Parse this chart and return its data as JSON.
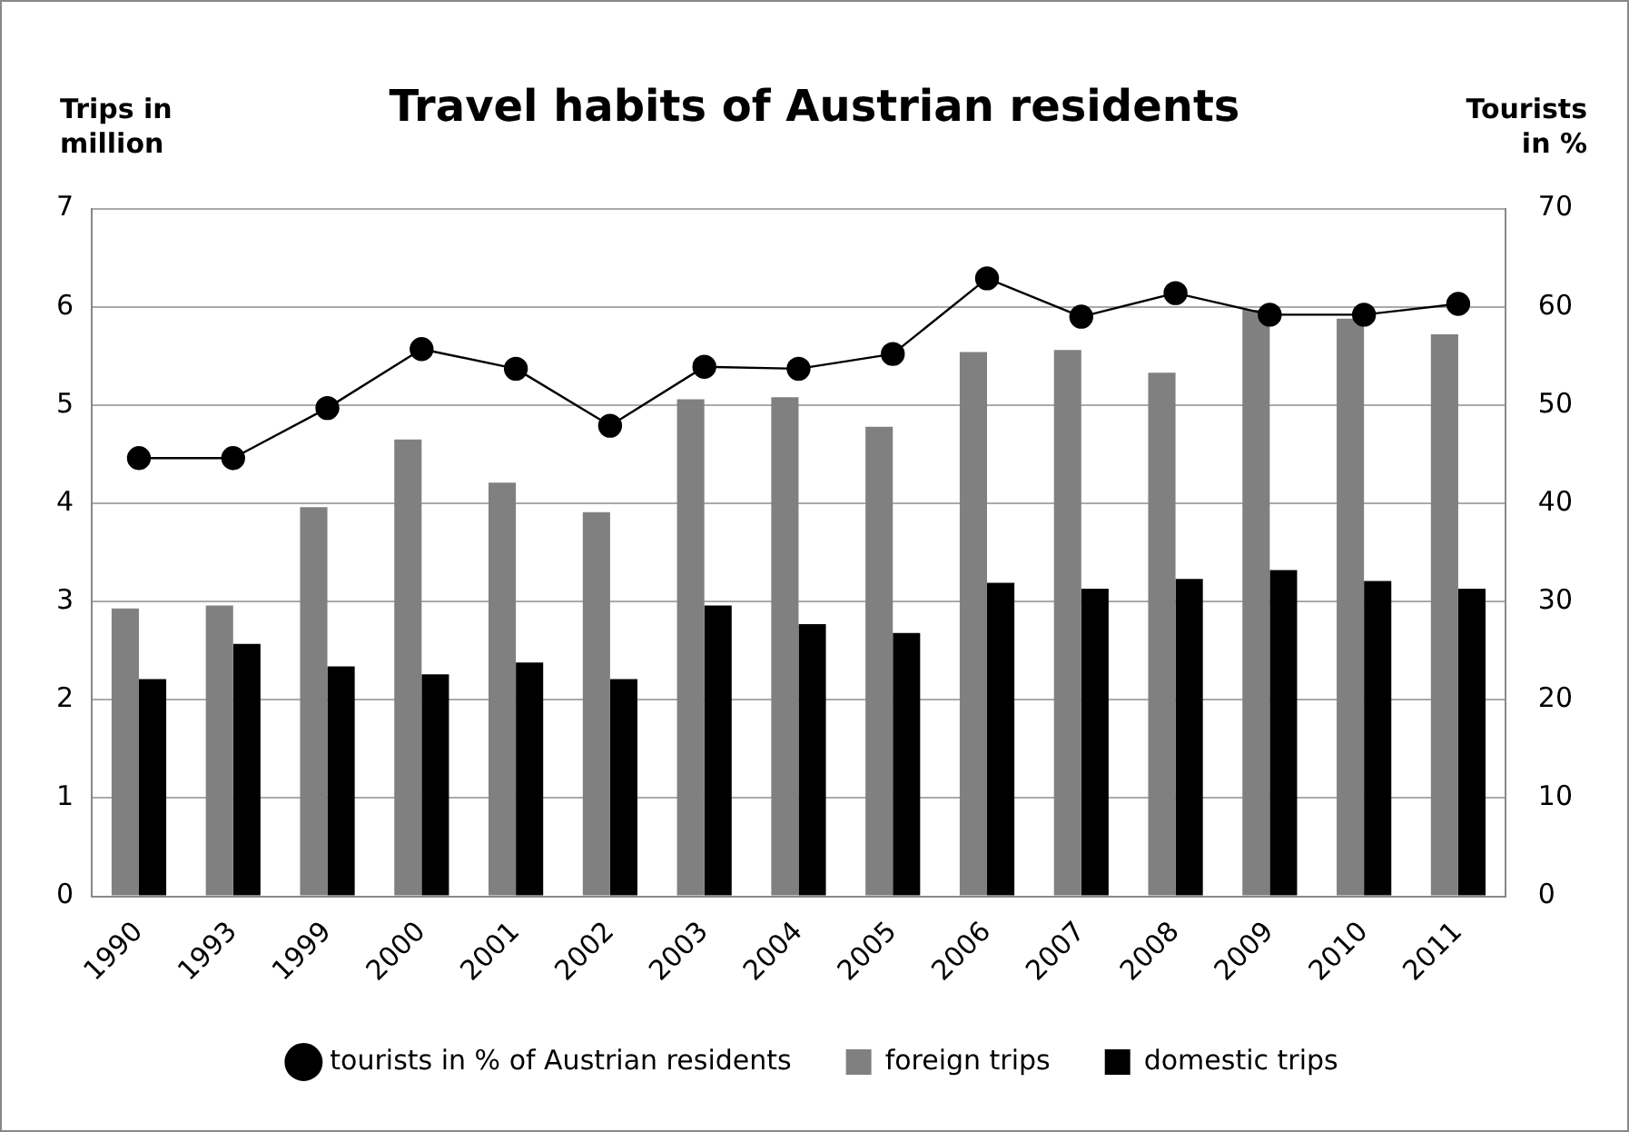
{
  "chart_data": {
    "type": "bar",
    "title": "Travel habits of Austrian residents",
    "ylabel": "Trips in million",
    "y2label": "Tourists in %",
    "categories": [
      "1990",
      "1993",
      "1999",
      "2000",
      "2001",
      "2002",
      "2003",
      "2004",
      "2005",
      "2006",
      "2007",
      "2008",
      "2009",
      "2010",
      "2011"
    ],
    "series": [
      {
        "name": "foreign trips",
        "color": "#808080",
        "values": [
          2.93,
          2.96,
          3.96,
          4.65,
          4.21,
          3.91,
          5.06,
          5.08,
          4.78,
          5.54,
          5.56,
          5.33,
          5.97,
          5.88,
          5.72
        ]
      },
      {
        "name": "domestic trips",
        "color": "#000000",
        "values": [
          2.21,
          2.57,
          2.34,
          2.26,
          2.38,
          2.21,
          2.96,
          2.77,
          2.68,
          3.19,
          3.13,
          3.23,
          3.32,
          3.21,
          3.13
        ]
      },
      {
        "name": "tourists in % of Austrian residents",
        "type": "line",
        "axis": "y2",
        "color": "#000000",
        "marker": "circle",
        "values": [
          44.6,
          44.6,
          49.7,
          55.7,
          53.7,
          47.9,
          53.9,
          53.7,
          55.2,
          62.9,
          59.0,
          61.4,
          59.2,
          59.2,
          60.3
        ]
      }
    ],
    "ylim": [
      0,
      7
    ],
    "yticks": [
      0,
      1,
      2,
      3,
      4,
      5,
      6,
      7
    ],
    "y2lim": [
      0,
      70
    ],
    "y2ticks": [
      0,
      10,
      20,
      30,
      40,
      50,
      60,
      70
    ],
    "grid": "y",
    "legend": "bottom"
  }
}
